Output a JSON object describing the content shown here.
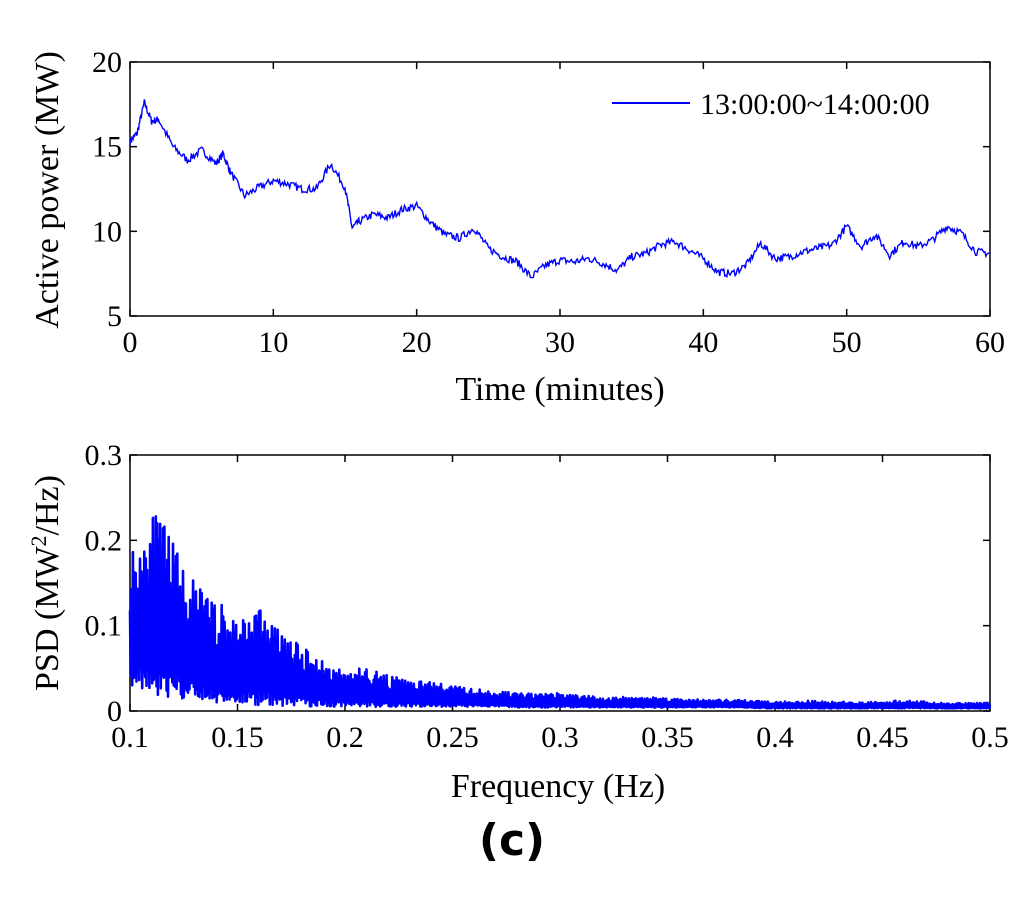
{
  "panel_label": "(c)",
  "chart_data": [
    {
      "type": "line",
      "xlabel": "Time (minutes)",
      "ylabel": "Active power (MW)",
      "xlim": [
        0,
        60
      ],
      "ylim": [
        5,
        20
      ],
      "xticks": [
        "0",
        "10",
        "20",
        "30",
        "40",
        "50",
        "60"
      ],
      "yticks": [
        "5",
        "10",
        "15",
        "20"
      ],
      "legend": {
        "placement": "top-right",
        "entries": [
          "13:00:00~14:00:00"
        ]
      },
      "grid": false,
      "color": "#0000ff",
      "series": [
        {
          "name": "13:00:00~14:00:00",
          "x": [
            0,
            0.5,
            1,
            1.5,
            2,
            3,
            4,
            5,
            6,
            6.5,
            7,
            8,
            9,
            10,
            11,
            12,
            13,
            14,
            15,
            15.5,
            16,
            17,
            18,
            19,
            20,
            21,
            22,
            23,
            24,
            25,
            26,
            27,
            28,
            29,
            30,
            31,
            32,
            33,
            34,
            35,
            36,
            37,
            38,
            39,
            40,
            41,
            42,
            43,
            44,
            45,
            46,
            47,
            48,
            49,
            50,
            51,
            52,
            53,
            54,
            55,
            56,
            57,
            58,
            59,
            60
          ],
          "y": [
            15.3,
            15.8,
            17.6,
            16.5,
            16.6,
            15.0,
            14.2,
            14.8,
            14.0,
            14.6,
            13.5,
            12.1,
            12.6,
            13.0,
            12.8,
            12.5,
            12.5,
            14.0,
            12.6,
            10.2,
            10.6,
            11.0,
            10.8,
            11.3,
            11.5,
            10.5,
            9.8,
            9.6,
            10.2,
            9.0,
            8.5,
            8.2,
            7.3,
            8.0,
            8.3,
            8.2,
            8.4,
            8.1,
            7.7,
            8.5,
            8.7,
            9.2,
            9.4,
            8.9,
            8.4,
            7.6,
            7.5,
            8.0,
            9.3,
            8.4,
            8.5,
            8.8,
            9.0,
            9.2,
            10.3,
            9.1,
            9.8,
            8.6,
            9.4,
            9.1,
            9.5,
            10.3,
            9.9,
            8.8,
            8.7
          ]
        }
      ]
    },
    {
      "type": "line",
      "xlabel": "Frequency (Hz)",
      "ylabel": "PSD (MW",
      "ylabel_sup": "2",
      "ylabel_tail": "/Hz)",
      "xlim": [
        0.1,
        0.5
      ],
      "ylim": [
        0,
        0.3
      ],
      "xticks": [
        "0.1",
        "0.15",
        "0.2",
        "0.25",
        "0.3",
        "0.35",
        "0.4",
        "0.45",
        "0.5"
      ],
      "yticks": [
        "0",
        "0.1",
        "0.2",
        "0.3"
      ],
      "grid": false,
      "color": "#0000ff",
      "series": [
        {
          "x": [
            0.1,
            0.11,
            0.12,
            0.13,
            0.14,
            0.15,
            0.16,
            0.17,
            0.18,
            0.19,
            0.2,
            0.21,
            0.22,
            0.23,
            0.24,
            0.25,
            0.26,
            0.27,
            0.28,
            0.29,
            0.3,
            0.32,
            0.34,
            0.36,
            0.38,
            0.4,
            0.42,
            0.44,
            0.46,
            0.48,
            0.5
          ],
          "upper": [
            0.19,
            0.24,
            0.2,
            0.15,
            0.13,
            0.11,
            0.125,
            0.095,
            0.075,
            0.06,
            0.048,
            0.052,
            0.042,
            0.036,
            0.034,
            0.03,
            0.026,
            0.024,
            0.022,
            0.02,
            0.021,
            0.016,
            0.017,
            0.014,
            0.013,
            0.012,
            0.012,
            0.01,
            0.013,
            0.009,
            0.01
          ],
          "lower": [
            0.03,
            0.02,
            0.015,
            0.012,
            0.01,
            0.008,
            0.007,
            0.006,
            0.006,
            0.005,
            0.005,
            0.005,
            0.005,
            0.005,
            0.005,
            0.005,
            0.005,
            0.005,
            0.004,
            0.004,
            0.004,
            0.004,
            0.004,
            0.004,
            0.004,
            0.003,
            0.003,
            0.003,
            0.003,
            0.003,
            0.003
          ]
        }
      ]
    }
  ]
}
